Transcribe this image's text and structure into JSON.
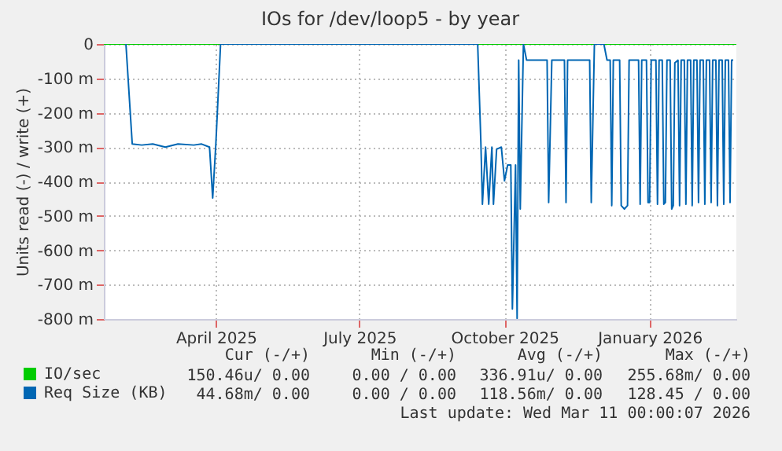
{
  "chart_data": {
    "type": "line",
    "title": "IOs for /dev/loop5 - by year",
    "ylabel": "Units read (-) / write (+)",
    "xlim": [
      "2025-02-04",
      "2026-03-12"
    ],
    "xticks": [
      {
        "value": "2025-04-16",
        "label": "April 2025"
      },
      {
        "value": "2025-07-16",
        "label": "July 2025"
      },
      {
        "value": "2025-10-16",
        "label": "October 2025"
      },
      {
        "value": "2026-01-16",
        "label": "January 2026"
      }
    ],
    "ylim": [
      -800,
      0
    ],
    "yticks": [
      {
        "value": -800,
        "label": "-800 m"
      },
      {
        "value": -700,
        "label": "-700 m"
      },
      {
        "value": -600,
        "label": "-600 m"
      },
      {
        "value": -500,
        "label": "-500 m"
      },
      {
        "value": -400,
        "label": "-400 m"
      },
      {
        "value": -300,
        "label": "-300 m"
      },
      {
        "value": -200,
        "label": "-200 m"
      },
      {
        "value": -100,
        "label": "-100 m"
      },
      0
    ],
    "grid": true,
    "legend": "bottom",
    "series": [
      {
        "name": "IO/sec",
        "color": "#00cc00",
        "x": [
          "2025-02-04",
          "2026-03-12"
        ],
        "values": [
          0,
          0
        ]
      },
      {
        "name": "Req Size (KB)",
        "color": "#0066b3",
        "x": [
          "2025-02-18",
          "2025-02-22",
          "2025-02-28",
          "2025-03-07",
          "2025-03-15",
          "2025-03-23",
          "2025-04-02",
          "2025-04-07",
          "2025-04-12",
          "2025-04-14",
          "2025-04-16",
          "2025-04-19",
          "2025-09-29",
          "2025-10-01",
          "2025-10-02",
          "2025-10-04",
          "2025-10-06",
          "2025-10-08",
          "2025-10-09",
          "2025-10-11",
          "2025-10-14",
          "2025-10-16",
          "2025-10-18",
          "2025-10-20",
          "2025-10-21",
          "2025-10-23",
          "2025-10-24",
          "2025-10-25",
          "2025-10-26",
          "2025-10-28",
          "2025-10-30",
          "2025-11-12",
          "2025-11-13",
          "2025-11-15",
          "2025-11-23",
          "2025-11-24",
          "2025-11-25",
          "2025-12-09",
          "2025-12-10",
          "2025-12-12",
          "2025-12-18",
          "2025-12-20",
          "2025-12-22",
          "2025-12-23",
          "2025-12-24",
          "2025-12-28",
          "2025-12-29",
          "2025-12-31",
          "2026-01-02",
          "2026-01-03",
          "2026-01-09",
          "2026-01-10",
          "2026-01-11",
          "2026-01-14",
          "2026-01-15",
          "2026-01-16",
          "2026-01-17",
          "2026-01-20",
          "2026-01-21",
          "2026-01-22",
          "2026-01-24",
          "2026-01-25",
          "2026-01-26",
          "2026-01-27",
          "2026-01-29",
          "2026-01-30",
          "2026-01-31",
          "2026-02-01",
          "2026-02-03",
          "2026-02-04",
          "2026-02-05",
          "2026-02-07",
          "2026-02-08",
          "2026-02-09",
          "2026-02-11",
          "2026-02-12",
          "2026-02-13",
          "2026-02-15",
          "2026-02-16",
          "2026-02-17",
          "2026-02-19",
          "2026-02-20",
          "2026-02-21",
          "2026-02-23",
          "2026-02-24",
          "2026-02-25",
          "2026-02-27",
          "2026-02-28",
          "2026-03-01",
          "2026-03-03",
          "2026-03-04",
          "2026-03-05",
          "2026-03-07",
          "2026-03-08",
          "2026-03-09",
          "2026-03-10"
        ],
        "values": [
          0,
          -291,
          -294,
          -291,
          -300,
          -291,
          -294,
          -291,
          -300,
          -448,
          -291,
          0,
          0,
          -283,
          -466,
          -300,
          -466,
          -300,
          -466,
          -306,
          -300,
          -398,
          -352,
          -352,
          -771,
          -352,
          -798,
          -47,
          -480,
          0,
          -47,
          -47,
          -461,
          -47,
          -47,
          -461,
          -47,
          -47,
          -461,
          0,
          0,
          -47,
          -47,
          -470,
          -47,
          -47,
          -470,
          -480,
          -470,
          -47,
          -47,
          -466,
          -47,
          -47,
          -461,
          -461,
          -47,
          -47,
          -466,
          -47,
          -47,
          -466,
          -461,
          -47,
          -47,
          -480,
          -470,
          -55,
          -47,
          -470,
          -47,
          -47,
          -466,
          -47,
          -47,
          -470,
          -47,
          -47,
          -461,
          -47,
          -47,
          -466,
          -47,
          -47,
          -461,
          -47,
          -47,
          -470,
          -47,
          -47,
          -466,
          -47,
          -47,
          -461,
          -47,
          -47
        ]
      }
    ],
    "annotations": [
      "Cur (-/+)",
      "Min (-/+)",
      "Avg (-/+)",
      "Max (-/+)",
      "150.46u/ 0.00",
      "0.00 / 0.00",
      "336.91u/ 0.00",
      "255.68m/ 0.00",
      "44.68m/ 0.00",
      "0.00 / 0.00",
      "118.56m/ 0.00",
      "128.45 / 0.00",
      "Last update: Wed Mar 11 00:00:07 2026"
    ]
  }
}
